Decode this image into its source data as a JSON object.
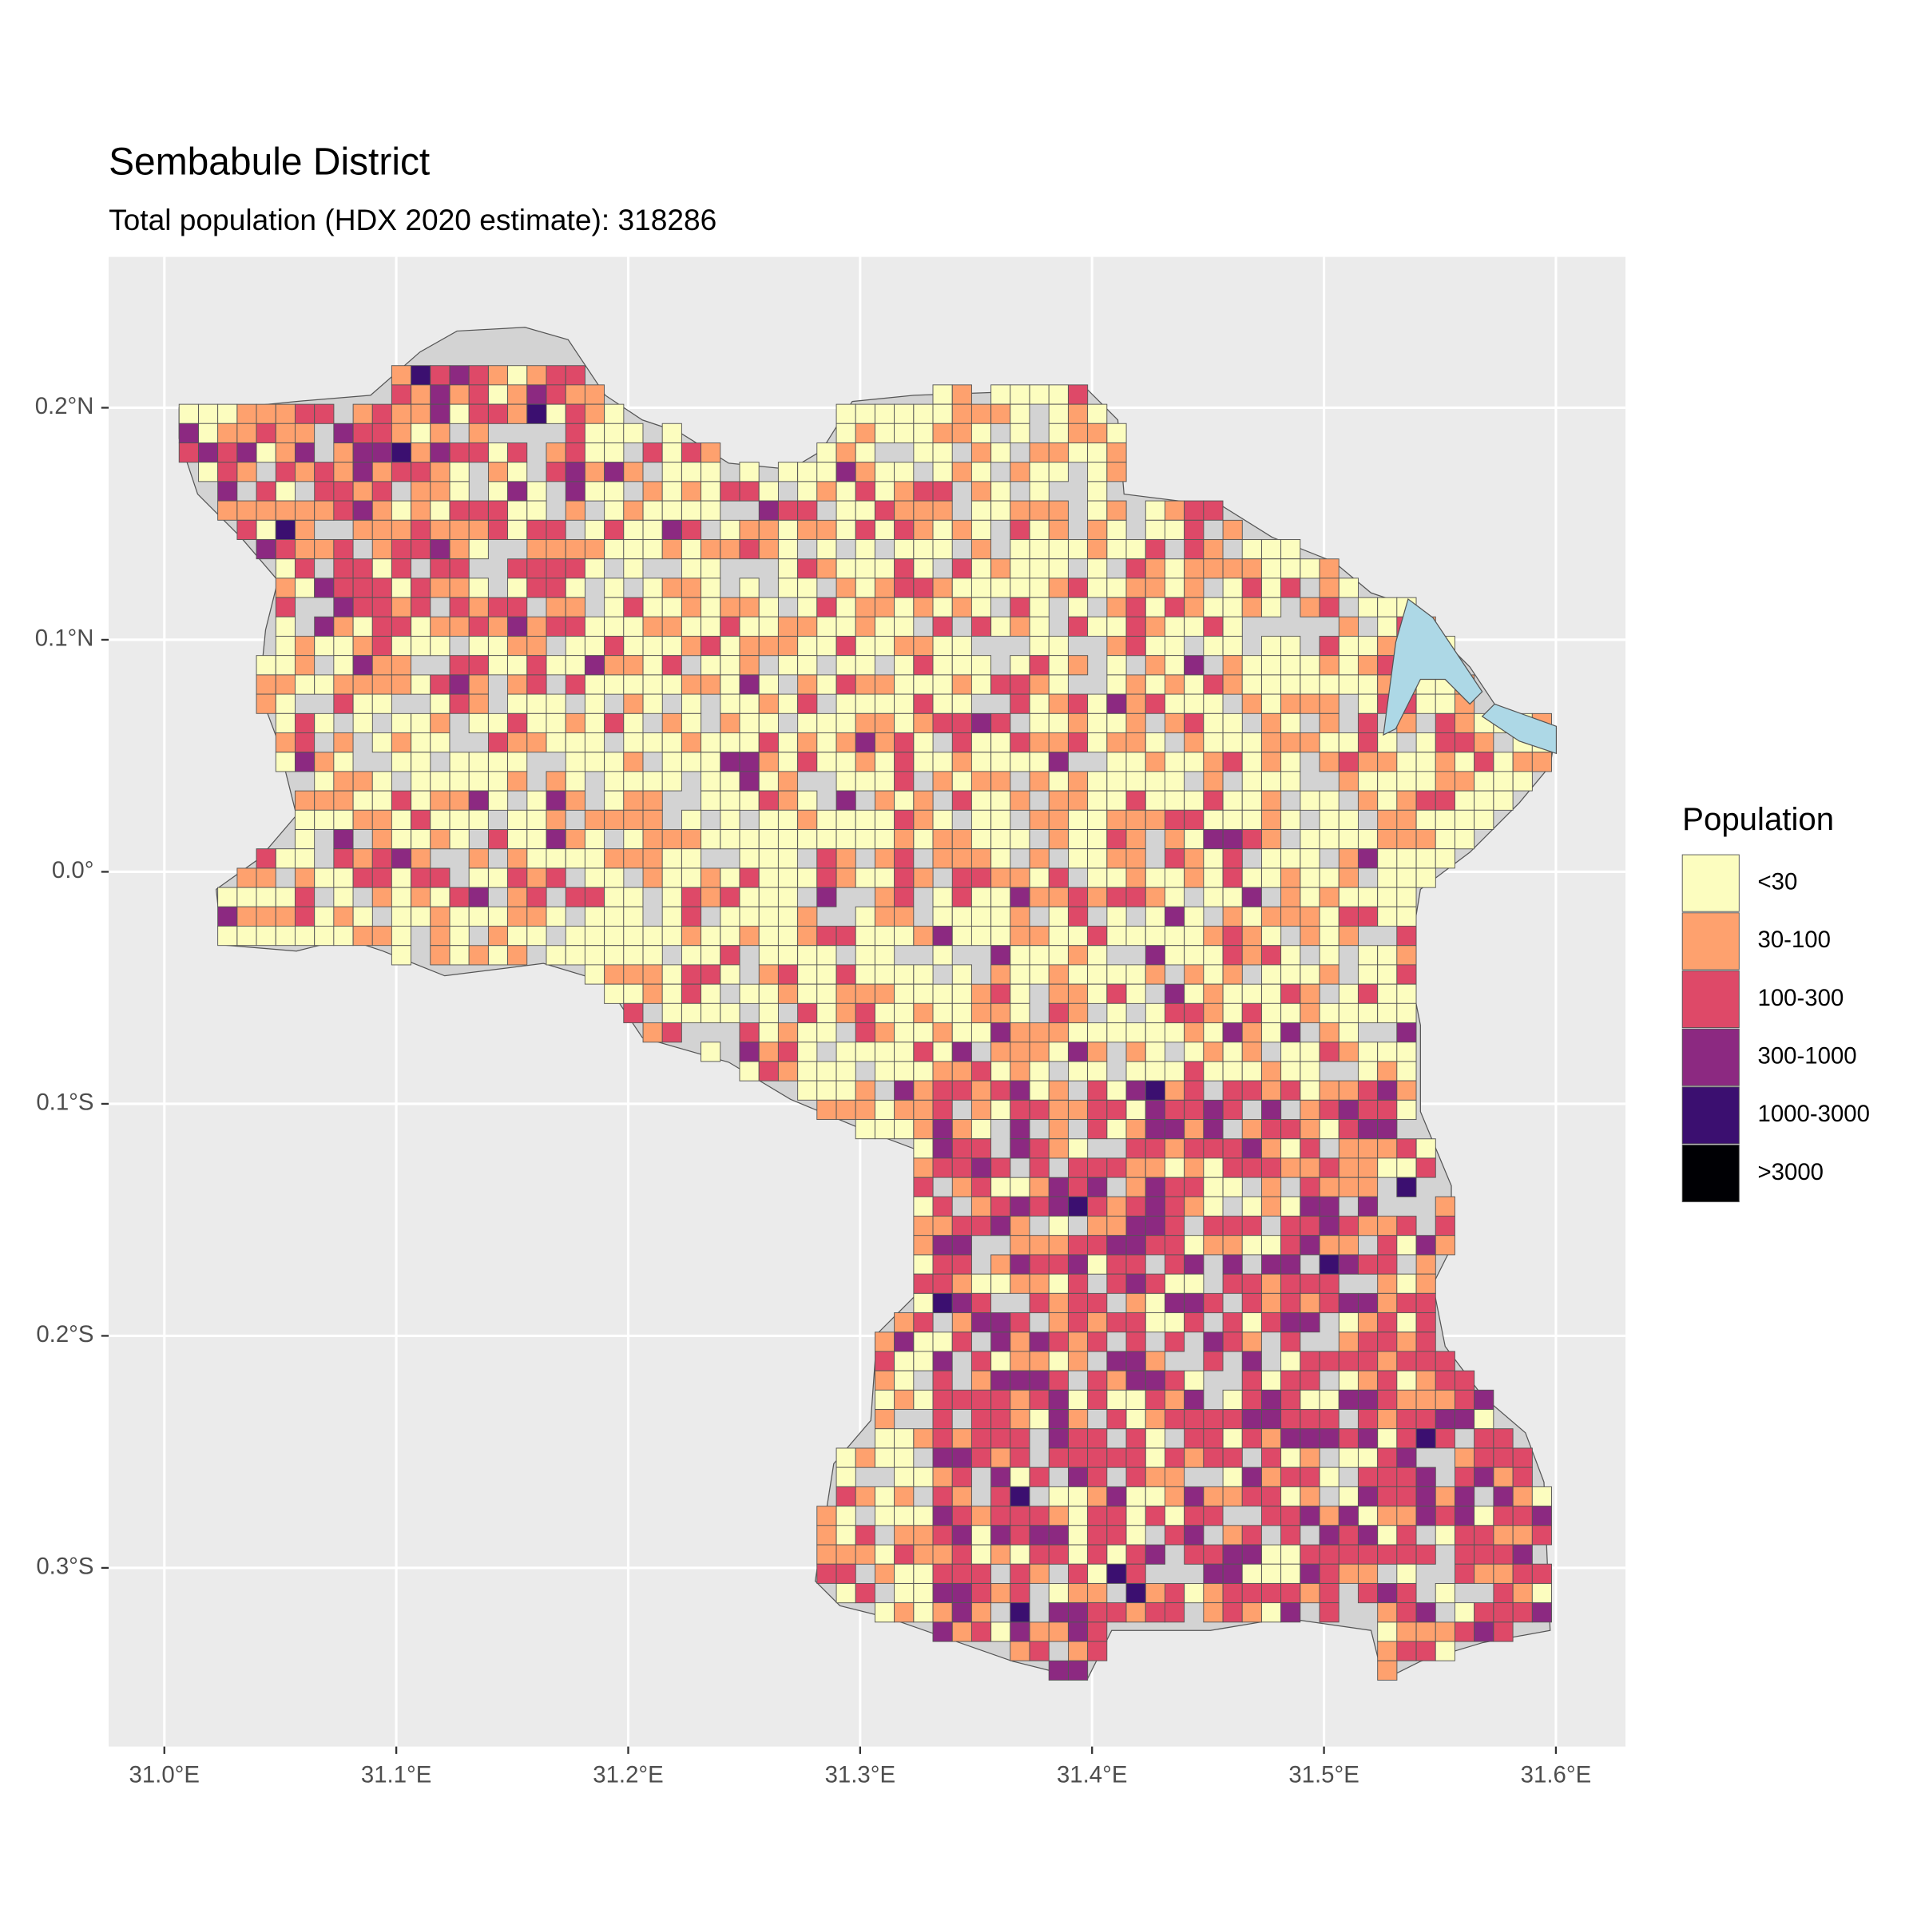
{
  "map": {
    "title": "Sembabule District",
    "subtitle": "Total population (HDX 2020 estimate): 318286",
    "xlim": [
      30.976,
      31.63
    ],
    "ylim": [
      -0.377,
      0.265
    ],
    "xticks": [
      {
        "value": 31.0,
        "label": "31.0°E"
      },
      {
        "value": 31.1,
        "label": "31.1°E"
      },
      {
        "value": 31.2,
        "label": "31.2°E"
      },
      {
        "value": 31.3,
        "label": "31.3°E"
      },
      {
        "value": 31.4,
        "label": "31.4°E"
      },
      {
        "value": 31.5,
        "label": "31.5°E"
      },
      {
        "value": 31.6,
        "label": "31.6°E"
      }
    ],
    "yticks": [
      {
        "value": 0.2,
        "label": "0.2°N"
      },
      {
        "value": 0.1,
        "label": "0.1°N"
      },
      {
        "value": 0,
        "label": "0.0°"
      },
      {
        "value": -0.1,
        "label": "0.1°S"
      },
      {
        "value": -0.2,
        "label": "0.2°S"
      },
      {
        "value": -0.3,
        "label": "0.3°S"
      }
    ],
    "grid": true,
    "legend": {
      "title": "Population",
      "entries": [
        {
          "label": "<30",
          "color": "#fcfdbf"
        },
        {
          "label": "30-100",
          "color": "#fea16e"
        },
        {
          "label": "100-300",
          "color": "#de4968"
        },
        {
          "label": "300-1000",
          "color": "#8c2981"
        },
        {
          "label": "1000-3000",
          "color": "#3b0f70"
        },
        {
          "label": ">3000",
          "color": "#000004"
        }
      ]
    }
  }
}
